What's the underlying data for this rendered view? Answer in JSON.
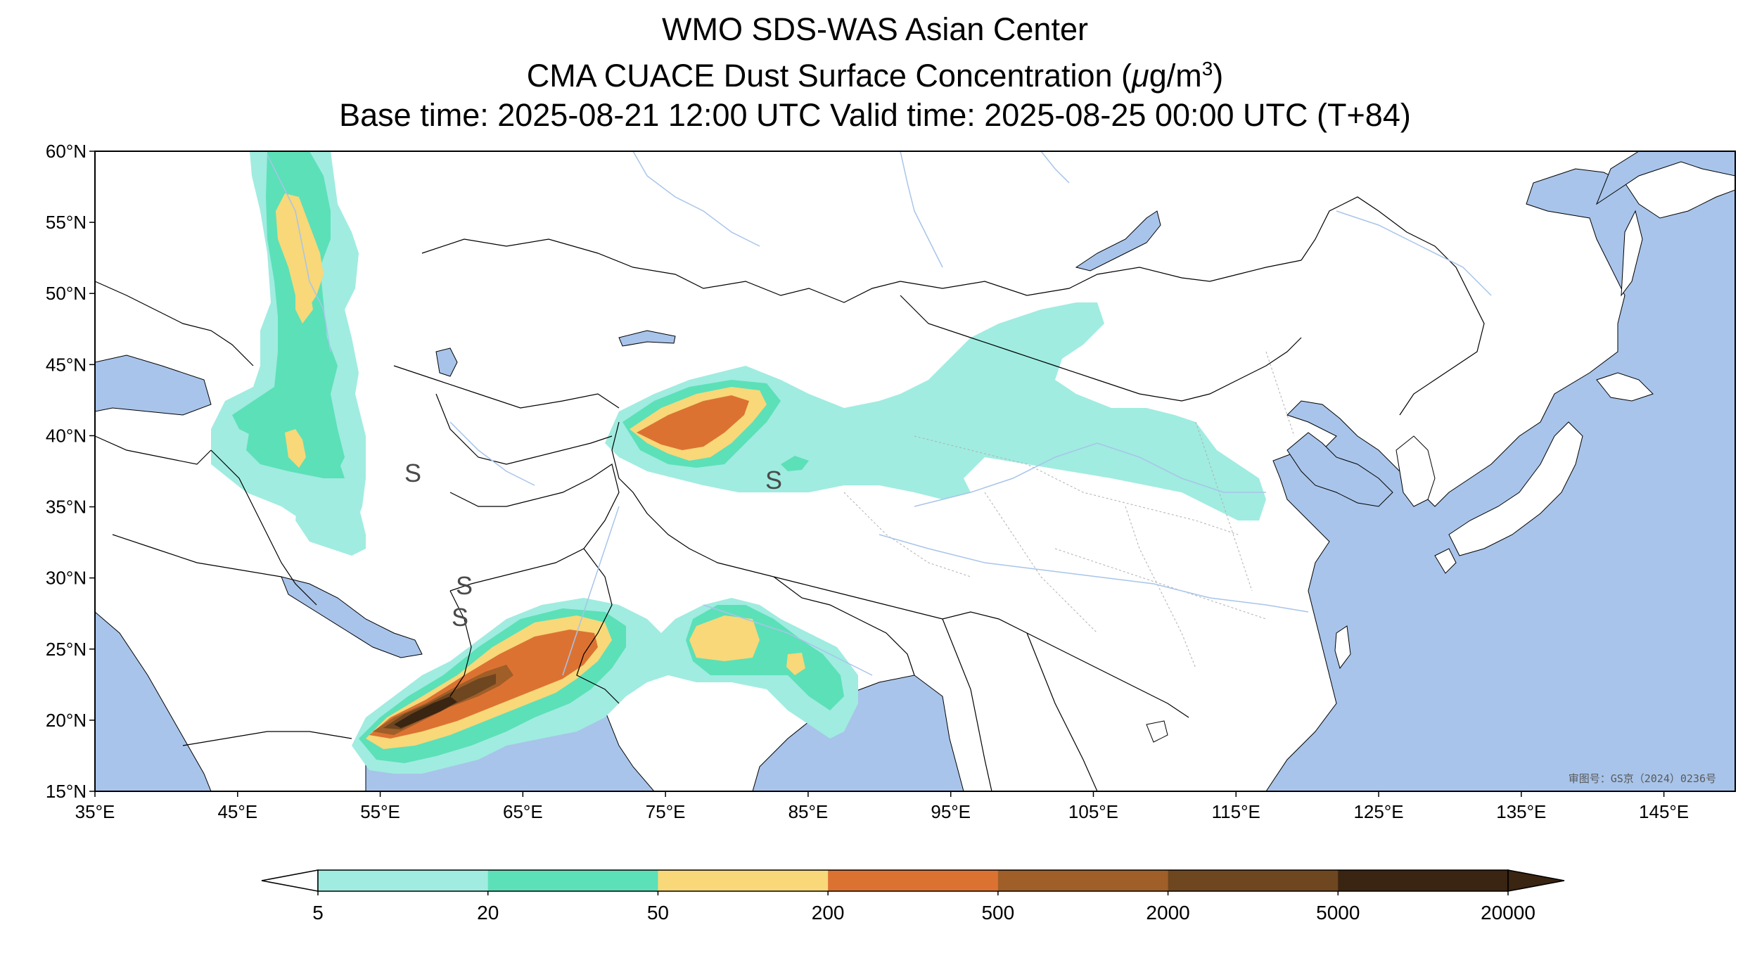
{
  "title": {
    "line1": "WMO SDS-WAS Asian Center",
    "line2_prefix": "CMA CUACE Dust Surface Concentration (",
    "line2_mu": "μ",
    "line2_unit": "g/m",
    "line2_sup": "3",
    "line2_suffix": ")",
    "line3": "Base time: 2025-08-21 12:00 UTC Valid time: 2025-08-25 00:00 UTC (T+84)"
  },
  "map": {
    "lon_range": [
      35,
      150
    ],
    "lat_range": [
      15,
      60
    ],
    "ocean_color": "#a8c4ea",
    "land_color": "#ffffff",
    "x_ticks": [
      "35°E",
      "45°E",
      "55°E",
      "65°E",
      "75°E",
      "85°E",
      "95°E",
      "105°E",
      "115°E",
      "125°E",
      "135°E",
      "145°E"
    ],
    "y_ticks": [
      "15°N",
      "20°N",
      "25°N",
      "30°N",
      "35°N",
      "40°N",
      "45°N",
      "50°N",
      "55°N",
      "60°N"
    ],
    "approval_text": "审图号：GS京（2024）0236号",
    "storm_symbols": [
      "S",
      "S",
      "S",
      "S"
    ]
  },
  "colorbar": {
    "levels": [
      "5",
      "20",
      "50",
      "200",
      "500",
      "2000",
      "5000",
      "20000"
    ],
    "colors": [
      "#a0ece0",
      "#5ce0b8",
      "#f8d878",
      "#dc7232",
      "#a05e28",
      "#6e4620",
      "#3a2412"
    ],
    "extend": "both"
  }
}
